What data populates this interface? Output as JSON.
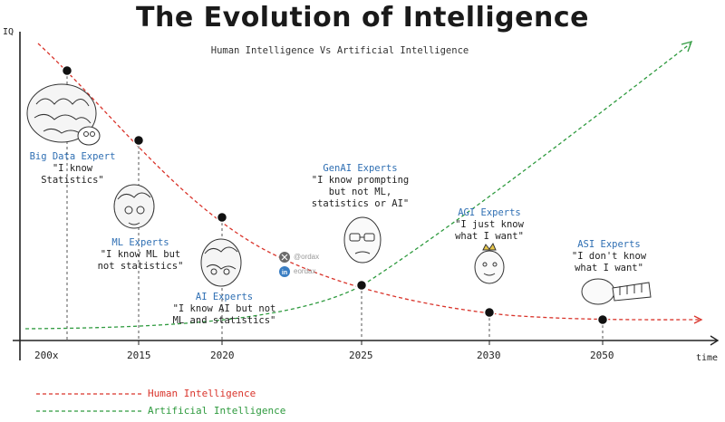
{
  "title": "The Evolution of Intelligence",
  "subtitle": "Human Intelligence Vs Artificial Intelligence",
  "axes": {
    "y_label": "IQ",
    "x_label": "time"
  },
  "x_ticks": [
    "200x",
    "2015",
    "2020",
    "2025",
    "2030",
    "2050"
  ],
  "stages": [
    {
      "role": "Big Data Expert",
      "quote": "\"I know\nStatistics\""
    },
    {
      "role": "ML Experts",
      "quote": "\"I know ML but\nnot statistics\""
    },
    {
      "role": "AI Experts",
      "quote": "\"I know AI but not\nML and statistics\""
    },
    {
      "role": "GenAI Experts",
      "quote": "\"I know prompting\nbut not ML,\nstatistics or AI\""
    },
    {
      "role": "AGI Experts",
      "quote": "\"I just know\nwhat I want\""
    },
    {
      "role": "ASI Experts",
      "quote": "\"I don't know\nwhat I want\""
    }
  ],
  "watermark": {
    "x_handle": "@ordax",
    "linkedin_handle": "eordax"
  },
  "legend": [
    {
      "name": "Human Intelligence",
      "color": "#d9342b"
    },
    {
      "name": "Artificial Intelligence",
      "color": "#2e9a3e"
    }
  ],
  "colors": {
    "human": "#d9342b",
    "ai": "#2e9a3e",
    "role": "#2f6fb3",
    "marker": "#111111"
  }
}
